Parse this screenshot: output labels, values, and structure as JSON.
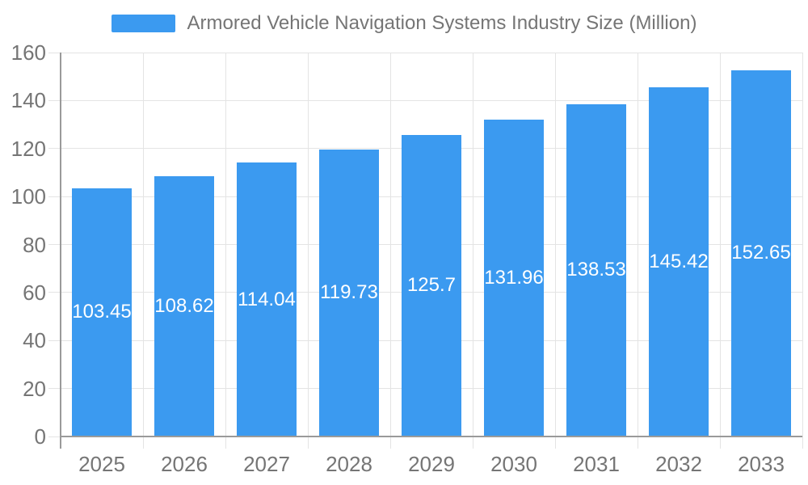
{
  "chart_data": {
    "type": "bar",
    "title": "Armored Vehicle Navigation Systems Industry Size (Million)",
    "categories": [
      "2025",
      "2026",
      "2027",
      "2028",
      "2029",
      "2030",
      "2031",
      "2032",
      "2033"
    ],
    "values": [
      103.45,
      108.62,
      114.04,
      119.73,
      125.7,
      131.96,
      138.53,
      145.42,
      152.65
    ],
    "value_labels": [
      "103.45",
      "108.62",
      "114.04",
      "119.73",
      "125.7",
      "131.96",
      "138.53",
      "145.42",
      "152.65"
    ],
    "yticks": [
      "0",
      "20",
      "40",
      "60",
      "80",
      "100",
      "120",
      "140",
      "160"
    ],
    "ylim": [
      0,
      160
    ],
    "xlabel": "",
    "ylabel": "",
    "grid": true,
    "legend_position": "top",
    "colors": {
      "bar": "#3b9af0",
      "value_label": "#ffffff",
      "axis_text": "#757575",
      "axis_line": "#9a9a9a",
      "grid": "#e4e4e4"
    }
  }
}
